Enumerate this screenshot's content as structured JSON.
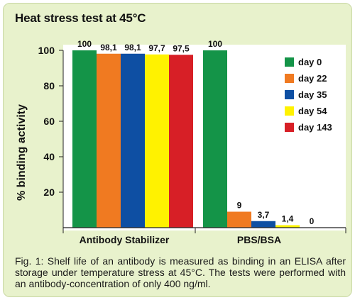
{
  "chart_data": {
    "type": "bar",
    "title": "Heat stress test at 45°C",
    "xlabel": "",
    "ylabel": "% binding activity",
    "ylim": [
      0,
      100
    ],
    "yticks": [
      20,
      40,
      60,
      80,
      100
    ],
    "grid": false,
    "legend_position": "top-right",
    "categories": [
      "Antibody Stabilizer",
      "PBS/BSA"
    ],
    "series": [
      {
        "name": "day 0",
        "color": "#149448",
        "values": [
          100,
          100
        ],
        "labels": [
          "100",
          "100"
        ]
      },
      {
        "name": "day 22",
        "color": "#f07a21",
        "values": [
          98.1,
          9
        ],
        "labels": [
          "98,1",
          "9"
        ]
      },
      {
        "name": "day 35",
        "color": "#0e4fa3",
        "values": [
          98.1,
          3.7
        ],
        "labels": [
          "98,1",
          "3,7"
        ]
      },
      {
        "name": "day 54",
        "color": "#fff200",
        "values": [
          97.7,
          1.4
        ],
        "labels": [
          "97,7",
          "1,4"
        ]
      },
      {
        "name": "day 143",
        "color": "#d71f26",
        "values": [
          97.5,
          0
        ],
        "labels": [
          "97,5",
          "0"
        ]
      }
    ]
  },
  "caption": "Fig. 1: Shelf life of an antibody is measured as binding in an ELISA after storage under temperature stress at 45°C. The tests were performed with an antibody-concentration of only 400 ng/ml.",
  "colors": {
    "panel_background": "#e8f2cc",
    "plot_background": "#ffffff"
  }
}
